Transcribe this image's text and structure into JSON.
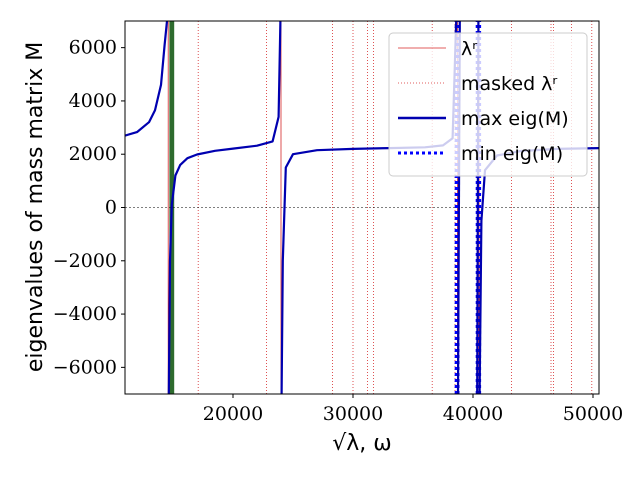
{
  "chart_data": {
    "type": "line",
    "xlabel": "√λ, ω",
    "ylabel": "eigenvalues of mass matrix M",
    "xlim": [
      11000,
      50500
    ],
    "ylim": [
      -7000,
      7000
    ],
    "x_ticks": [
      20000,
      30000,
      40000,
      50000
    ],
    "x_tick_labels": [
      "20000",
      "30000",
      "40000",
      "50000"
    ],
    "y_ticks": [
      -6000,
      -4000,
      -2000,
      0,
      2000,
      4000,
      6000
    ],
    "y_tick_labels": [
      "−6000",
      "−4000",
      "−2000",
      "0",
      "2000",
      "4000",
      "6000"
    ],
    "zero_line": true,
    "legend": {
      "position": "top-right",
      "entries": [
        {
          "label": "λʳ",
          "style": "solid-thin",
          "color": "#d62728"
        },
        {
          "label": "masked λʳ",
          "style": "dotted-thin",
          "color": "#d62728"
        },
        {
          "label": "max eig(M)",
          "style": "solid-thick",
          "color": "#0000b0"
        },
        {
          "label": "min eig(M)",
          "style": "dotted-thick",
          "color": "#0000ff"
        }
      ]
    },
    "lambda_r": [
      14600,
      24000,
      38700,
      40500
    ],
    "masked_lambda_r": [
      17100,
      22800,
      28300,
      30000,
      31200,
      31700,
      36600,
      38500,
      43200,
      46500,
      46700,
      48200,
      49900
    ],
    "highlight_band": {
      "x": [
        14700,
        15100
      ],
      "color": "#2e6b2e"
    },
    "max_eig_series": [
      {
        "x": [
          11000,
          12000,
          13000,
          13500,
          14000,
          14300,
          14500
        ],
        "y": [
          2700,
          2830,
          3200,
          3650,
          4600,
          6100,
          7000
        ]
      },
      {
        "x": [
          14650,
          14750,
          14900,
          15200,
          15600,
          16200,
          17000,
          18500,
          20000,
          22000,
          23300,
          23800,
          23950
        ],
        "y": [
          -7000,
          -2000,
          100,
          1200,
          1600,
          1850,
          1990,
          2130,
          2210,
          2320,
          2480,
          3400,
          7000
        ]
      },
      {
        "x": [
          24050,
          24150,
          24400,
          25000,
          27000,
          30000,
          33000,
          36000,
          37500,
          38300,
          38600
        ],
        "y": [
          -7000,
          -2000,
          1500,
          2000,
          2150,
          2200,
          2230,
          2260,
          2330,
          2600,
          7000
        ]
      },
      {
        "x": [
          38750,
          38900
        ],
        "y": [
          -7000,
          7000
        ]
      },
      {
        "x": [
          40350,
          40450
        ],
        "y": [
          -7000,
          7000
        ]
      },
      {
        "x": [
          40550,
          40700,
          41000,
          42000,
          44000,
          47000,
          50500
        ],
        "y": [
          -7000,
          -500,
          1400,
          1950,
          2120,
          2200,
          2230
        ]
      }
    ],
    "min_eig_series": [
      {
        "x": [
          38600,
          38600
        ],
        "y": [
          -7000,
          7000
        ]
      },
      {
        "x": [
          38750,
          38750
        ],
        "y": [
          -7000,
          7000
        ]
      },
      {
        "x": [
          40350,
          40350
        ],
        "y": [
          -7000,
          7000
        ]
      },
      {
        "x": [
          40550,
          40550
        ],
        "y": [
          -7000,
          7000
        ]
      }
    ]
  }
}
